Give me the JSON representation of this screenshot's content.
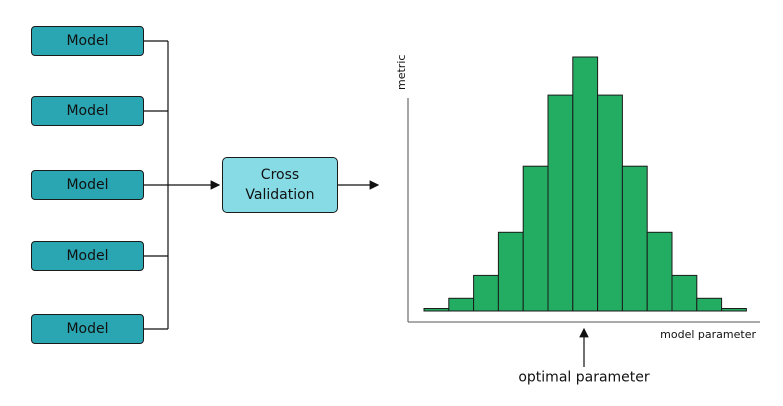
{
  "models": [
    {
      "label": "Model"
    },
    {
      "label": "Model"
    },
    {
      "label": "Model"
    },
    {
      "label": "Model"
    },
    {
      "label": "Model"
    }
  ],
  "cross_validation": {
    "line1": "Cross",
    "line2": "Validation"
  },
  "chart": {
    "ylabel": "metric",
    "xlabel": "model parameter",
    "annotation": "optimal parameter"
  },
  "colors": {
    "model_fill": "#2aa6b3",
    "cv_fill": "#86dbe5",
    "bar_fill": "#22ad63",
    "stroke": "#1b1b1b"
  },
  "chart_data": {
    "type": "bar",
    "xlabel": "model parameter",
    "ylabel": "metric",
    "values": [
      0.01,
      0.05,
      0.14,
      0.31,
      0.57,
      0.85,
      1.0,
      0.85,
      0.57,
      0.31,
      0.14,
      0.05,
      0.01
    ],
    "optimal_index": 6
  }
}
